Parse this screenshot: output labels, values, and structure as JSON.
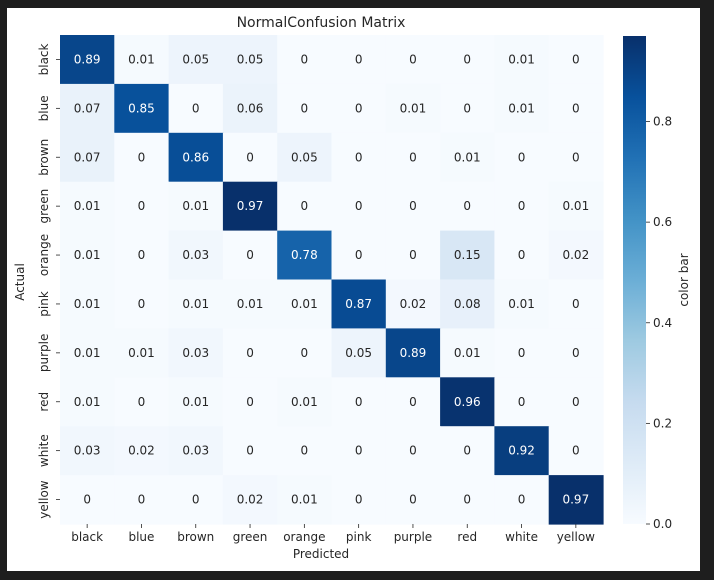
{
  "chart_data": {
    "type": "heatmap",
    "title": "NormalConfusion Matrix",
    "xlabel": "Predicted",
    "ylabel": "Actual",
    "x_categories": [
      "black",
      "blue",
      "brown",
      "green",
      "orange",
      "pink",
      "purple",
      "red",
      "white",
      "yellow"
    ],
    "y_categories": [
      "black",
      "blue",
      "brown",
      "green",
      "orange",
      "pink",
      "purple",
      "red",
      "white",
      "yellow"
    ],
    "values": [
      [
        0.89,
        0.01,
        0.05,
        0.05,
        0,
        0,
        0,
        0,
        0.01,
        0
      ],
      [
        0.07,
        0.85,
        0,
        0.06,
        0,
        0,
        0.01,
        0,
        0.01,
        0
      ],
      [
        0.07,
        0,
        0.86,
        0,
        0.05,
        0,
        0,
        0.01,
        0,
        0
      ],
      [
        0.01,
        0,
        0.01,
        0.97,
        0,
        0,
        0,
        0,
        0,
        0.01
      ],
      [
        0.01,
        0,
        0.03,
        0,
        0.78,
        0,
        0,
        0.15,
        0,
        0.02
      ],
      [
        0.01,
        0,
        0.01,
        0.01,
        0.01,
        0.87,
        0.02,
        0.08,
        0.01,
        0
      ],
      [
        0.01,
        0.01,
        0.03,
        0,
        0,
        0.05,
        0.89,
        0.01,
        0,
        0
      ],
      [
        0.01,
        0,
        0.01,
        0,
        0.01,
        0,
        0,
        0.96,
        0,
        0
      ],
      [
        0.03,
        0.02,
        0.03,
        0,
        0,
        0,
        0,
        0,
        0.92,
        0
      ],
      [
        0,
        0,
        0,
        0.02,
        0.01,
        0,
        0,
        0,
        0,
        0.97
      ]
    ],
    "colorbar": {
      "label": "color bar",
      "range": [
        0,
        0.97
      ],
      "ticks": [
        "0.0",
        "0.2",
        "0.4",
        "0.6",
        "0.8"
      ],
      "tick_values": [
        0,
        0.2,
        0.4,
        0.6,
        0.8
      ]
    },
    "colormap": "Blues",
    "colormap_stops": [
      "#f7fbff",
      "#deebf7",
      "#c6dbef",
      "#9ecae1",
      "#6baed6",
      "#4292c6",
      "#2171b5",
      "#08519c",
      "#08306b"
    ],
    "grid": false
  }
}
